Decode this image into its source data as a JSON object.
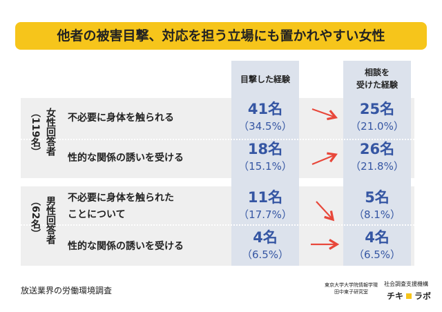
{
  "title": "他者の被害目撃、対応を担う立場にも置かれやすい女性",
  "columns": [
    "目撃した経験",
    [
      "相談を",
      "受けた経験"
    ]
  ],
  "groups": [
    {
      "label": "女性回答者",
      "count": "（119名）",
      "rows": [
        {
          "item": [
            "不必要に身体を触られる"
          ],
          "witnessed": [
            "41名",
            "（34.5%）"
          ],
          "consulted": [
            "25名",
            "（21.0%）"
          ]
        },
        {
          "item": [
            "性的な関係の誘いを受ける"
          ],
          "witnessed": [
            "18名",
            "（15.1%）"
          ],
          "consulted": [
            "26名",
            "（21.8%）"
          ]
        }
      ]
    },
    {
      "label": "男性回答者",
      "count": "（62名）",
      "rows": [
        {
          "item": [
            "不必要に身体を触られた",
            "ことについて"
          ],
          "witnessed": [
            "11名",
            "（17.7%）"
          ],
          "consulted": [
            "5名",
            "（8.1%）"
          ]
        },
        {
          "item": [
            "性的な関係の誘いを受ける"
          ],
          "witnessed": [
            "4名",
            "（6.5%）"
          ],
          "consulted": [
            "4名",
            "（6.5%）"
          ]
        }
      ]
    }
  ],
  "footer": {
    "source": "放送業界の労働環境調査",
    "lab": [
      "東京大学大学院情報学環",
      "田中東子研究室"
    ],
    "org": "社会調査支援機構",
    "logo": [
      "チキ",
      "ラボ"
    ]
  }
}
